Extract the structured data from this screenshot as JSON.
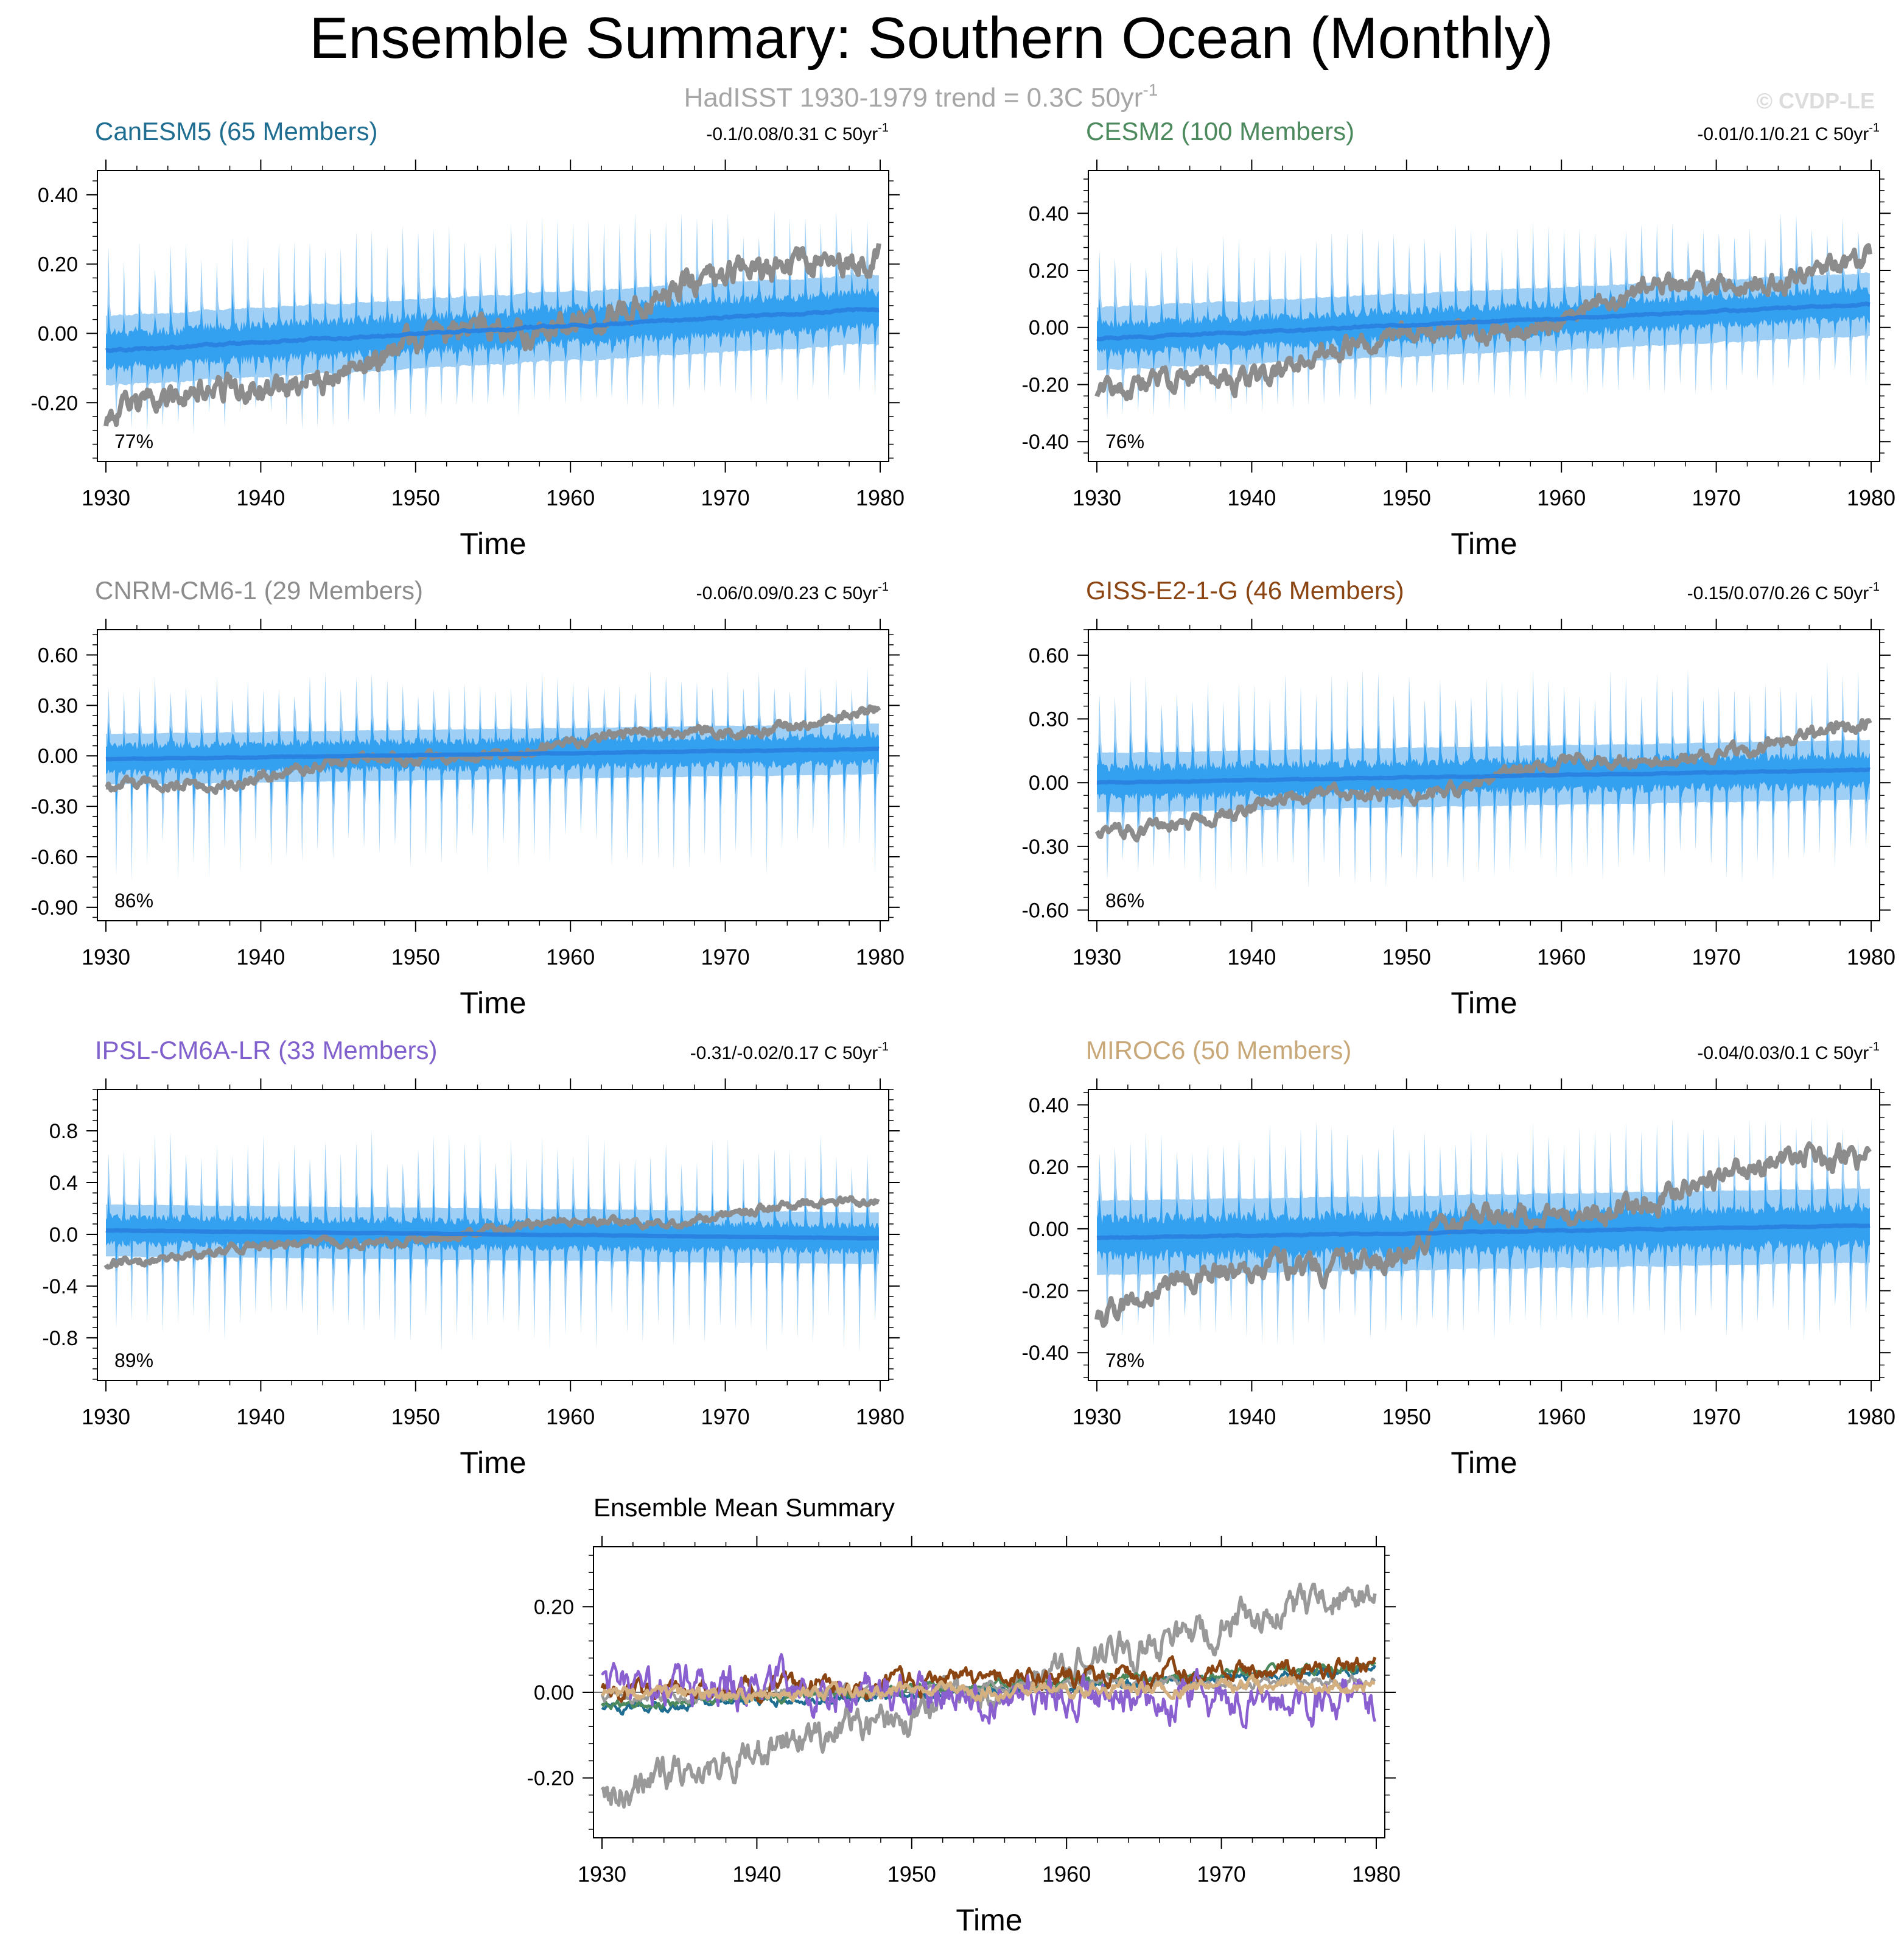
{
  "page": {
    "title": "Ensemble Summary: Southern Ocean (Monthly)",
    "subtitle_main": "HadISST 1930-1979 trend = 0.3C 50yr",
    "subtitle_sup": "-1",
    "watermark": "© CVDP-LE"
  },
  "colors": {
    "obs": "#8c8c8c",
    "band_outer": "#9fcff5",
    "band_inner": "#33a0f0",
    "mean_line": "#2a83e0"
  },
  "chart_data": [
    {
      "id": "canesm5",
      "type": "line",
      "title": "CanESM5 (65 Members)",
      "title_color": "#1f6e91",
      "trend_main": "-0.1/0.08/0.31 C 50yr",
      "trend_sup": "-1",
      "percent": "77%",
      "xlabel": "Time",
      "xlim": [
        1930,
        1980
      ],
      "xticks": [
        "1930",
        "1940",
        "1950",
        "1960",
        "1970",
        "1980"
      ],
      "ylim": [
        -0.37,
        0.47
      ],
      "yticks": [
        -0.2,
        0.0,
        0.2,
        0.4
      ],
      "ytick_labels": [
        "-0.20",
        "0.00",
        "0.20",
        "0.40"
      ],
      "obs": {
        "start": -0.25,
        "end": 0.25,
        "noise": 0.06
      },
      "ens": {
        "start": -0.05,
        "end": 0.07,
        "inner": 0.05,
        "outer": 0.1,
        "spike_up": 0.22,
        "spike_down": 0.16
      }
    },
    {
      "id": "cesm2",
      "type": "line",
      "title": "CESM2 (100 Members)",
      "title_color": "#4c8a5e",
      "trend_main": "-0.01/0.1/0.21 C 50yr",
      "trend_sup": "-1",
      "percent": "76%",
      "xlabel": "Time",
      "xlim": [
        1930,
        1980
      ],
      "xticks": [
        "1930",
        "1940",
        "1950",
        "1960",
        "1970",
        "1980"
      ],
      "ylim": [
        -0.47,
        0.55
      ],
      "yticks": [
        -0.4,
        -0.2,
        0.0,
        0.2,
        0.4
      ],
      "ytick_labels": [
        "-0.40",
        "-0.20",
        "0.00",
        "0.20",
        "0.40"
      ],
      "obs": {
        "start": -0.25,
        "end": 0.25,
        "noise": 0.06
      },
      "ens": {
        "start": -0.04,
        "end": 0.08,
        "inner": 0.05,
        "outer": 0.11,
        "spike_up": 0.24,
        "spike_down": 0.18
      }
    },
    {
      "id": "cnrm",
      "type": "line",
      "title": "CNRM-CM6-1 (29 Members)",
      "title_color": "#8c8c8c",
      "trend_main": "-0.06/0.09/0.23 C 50yr",
      "trend_sup": "-1",
      "percent": "86%",
      "xlabel": "Time",
      "xlim": [
        1930,
        1980
      ],
      "xticks": [
        "1930",
        "1940",
        "1950",
        "1960",
        "1970",
        "1980"
      ],
      "ylim": [
        -0.98,
        0.75
      ],
      "yticks": [
        -0.9,
        -0.6,
        -0.3,
        0.0,
        0.3,
        0.6
      ],
      "ytick_labels": [
        "-0.90",
        "-0.60",
        "-0.30",
        "0.00",
        "0.30",
        "0.60"
      ],
      "obs": {
        "start": -0.2,
        "end": 0.25,
        "noise": 0.05
      },
      "ens": {
        "start": -0.02,
        "end": 0.04,
        "inner": 0.08,
        "outer": 0.15,
        "spike_up": 0.35,
        "spike_down": 0.6
      }
    },
    {
      "id": "giss",
      "type": "line",
      "title": "GISS-E2-1-G (46 Members)",
      "title_color": "#8b4513",
      "trend_main": "-0.15/0.07/0.26 C 50yr",
      "trend_sup": "-1",
      "percent": "86%",
      "xlabel": "Time",
      "xlim": [
        1930,
        1980
      ],
      "xticks": [
        "1930",
        "1940",
        "1950",
        "1960",
        "1970",
        "1980"
      ],
      "ylim": [
        -0.65,
        0.72
      ],
      "yticks": [
        -0.6,
        -0.3,
        0.0,
        0.3,
        0.6
      ],
      "ytick_labels": [
        "-0.60",
        "-0.30",
        "0.00",
        "0.30",
        "0.60"
      ],
      "obs": {
        "start": -0.22,
        "end": 0.25,
        "noise": 0.05
      },
      "ens": {
        "start": 0.0,
        "end": 0.06,
        "inner": 0.07,
        "outer": 0.14,
        "spike_up": 0.38,
        "spike_down": 0.38
      }
    },
    {
      "id": "ipsl",
      "type": "line",
      "title": "IPSL-CM6A-LR (33 Members)",
      "title_color": "#8060cc",
      "trend_main": "-0.31/-0.02/0.17 C 50yr",
      "trend_sup": "-1",
      "percent": "89%",
      "xlabel": "Time",
      "xlim": [
        1930,
        1980
      ],
      "xticks": [
        "1930",
        "1940",
        "1950",
        "1960",
        "1970",
        "1980"
      ],
      "ylim": [
        -1.13,
        1.12
      ],
      "yticks": [
        -0.8,
        -0.4,
        0.0,
        0.4,
        0.8
      ],
      "ytick_labels": [
        "-0.8",
        "-0.4",
        "0.0",
        "0.4",
        "0.8"
      ],
      "obs": {
        "start": -0.2,
        "end": 0.25,
        "noise": 0.05
      },
      "ens": {
        "start": 0.03,
        "end": -0.03,
        "inner": 0.1,
        "outer": 0.2,
        "spike_up": 0.6,
        "spike_down": 0.72
      }
    },
    {
      "id": "miroc6",
      "type": "line",
      "title": "MIROC6 (50 Members)",
      "title_color": "#c8a878",
      "trend_main": "-0.04/0.03/0.1 C 50yr",
      "trend_sup": "-1",
      "percent": "78%",
      "xlabel": "Time",
      "xlim": [
        1930,
        1980
      ],
      "xticks": [
        "1930",
        "1940",
        "1950",
        "1960",
        "1970",
        "1980"
      ],
      "ylim": [
        -0.49,
        0.45
      ],
      "yticks": [
        -0.4,
        -0.2,
        0.0,
        0.2,
        0.4
      ],
      "ytick_labels": [
        "-0.40",
        "-0.20",
        "0.00",
        "0.20",
        "0.40"
      ],
      "obs": {
        "start": -0.25,
        "end": 0.25,
        "noise": 0.06
      },
      "ens": {
        "start": -0.03,
        "end": 0.01,
        "inner": 0.06,
        "outer": 0.12,
        "spike_up": 0.25,
        "spike_down": 0.25
      }
    },
    {
      "id": "summary",
      "type": "line",
      "title": "Ensemble Mean Summary",
      "title_color": "#000000",
      "xlabel": "Time",
      "xlim": [
        1930,
        1980
      ],
      "xticks": [
        "1930",
        "1940",
        "1950",
        "1960",
        "1970",
        "1980"
      ],
      "ylim": [
        -0.34,
        0.34
      ],
      "yticks": [
        -0.2,
        0.0,
        0.2
      ],
      "ytick_labels": [
        "-0.20",
        "0.00",
        "0.20"
      ],
      "series": [
        {
          "name": "HadISST",
          "color": "#999999",
          "start": -0.24,
          "end": 0.25,
          "noise": 0.06,
          "width": 5.5
        },
        {
          "name": "CanESM5",
          "color": "#1f6e91",
          "start": -0.04,
          "end": 0.05,
          "noise": 0.018,
          "width": 4.5
        },
        {
          "name": "CESM2",
          "color": "#4c8a5e",
          "start": -0.03,
          "end": 0.06,
          "noise": 0.018,
          "width": 4.5
        },
        {
          "name": "CNRM-CM6-1",
          "color": "#9a9a9a",
          "start": -0.01,
          "end": 0.03,
          "noise": 0.02,
          "width": 4.5
        },
        {
          "name": "GISS-E2-1-G",
          "color": "#8b4513",
          "start": 0.0,
          "end": 0.06,
          "noise": 0.035,
          "width": 5
        },
        {
          "name": "IPSL-CM6A-LR",
          "color": "#8a5fd0",
          "start": 0.02,
          "end": -0.02,
          "noise": 0.07,
          "width": 4.5
        },
        {
          "name": "MIROC6",
          "color": "#d4b080",
          "start": -0.01,
          "end": 0.02,
          "noise": 0.025,
          "width": 5.5
        }
      ]
    }
  ]
}
